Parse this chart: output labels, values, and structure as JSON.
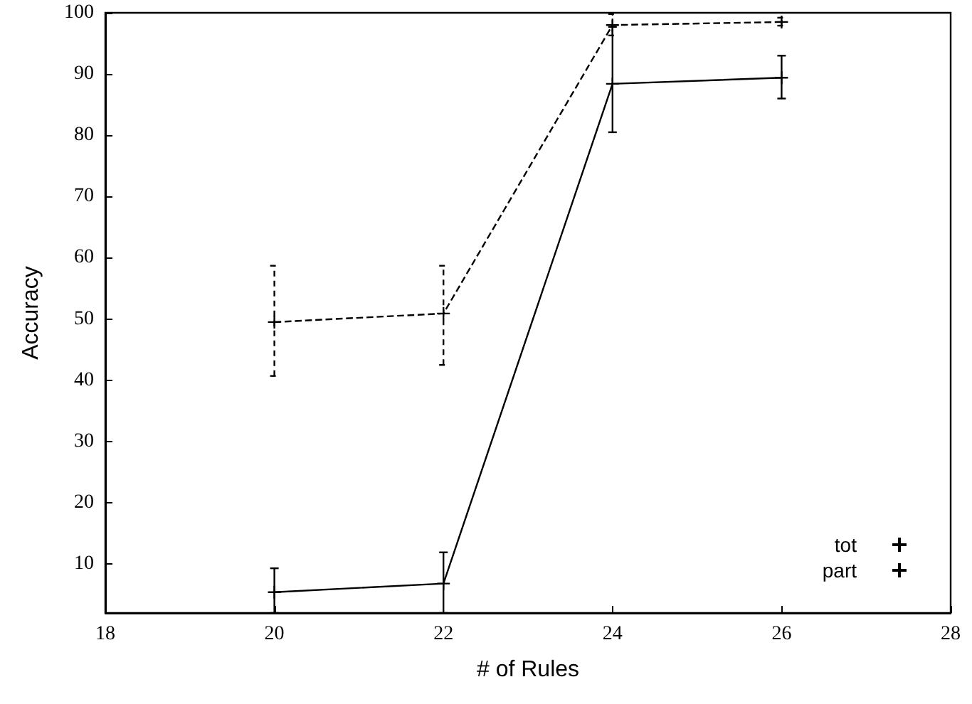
{
  "chart_data": {
    "type": "line",
    "xlabel": "# of Rules",
    "ylabel": "Accuracy",
    "x": [
      20,
      22,
      24,
      26
    ],
    "series": [
      {
        "name": "tot",
        "color": "#000000",
        "line_style": "solid",
        "values": [
          5.4,
          6.8,
          88.4,
          89.4
        ],
        "errors": [
          [
            2,
            9.3
          ],
          [
            2,
            11.9
          ],
          [
            80.5,
            97.7
          ],
          [
            86.0,
            93.0
          ]
        ]
      },
      {
        "name": "part",
        "color": "#000000",
        "line_style": "dashed",
        "values": [
          49.5,
          50.9,
          98.0,
          98.5
        ],
        "errors": [
          [
            40.7,
            58.7
          ],
          [
            42.5,
            58.7
          ],
          [
            96.3,
            99.8
          ],
          [
            97.9,
            99.2
          ]
        ]
      }
    ],
    "xlim": [
      18,
      28
    ],
    "xticks": [
      18,
      20,
      22,
      24,
      26,
      28
    ],
    "ylim": [
      2,
      100
    ],
    "yticks": [
      10,
      20,
      30,
      40,
      50,
      60,
      70,
      80,
      90,
      100
    ],
    "grid": false,
    "legend": "bottom right",
    "marker": "cross"
  }
}
